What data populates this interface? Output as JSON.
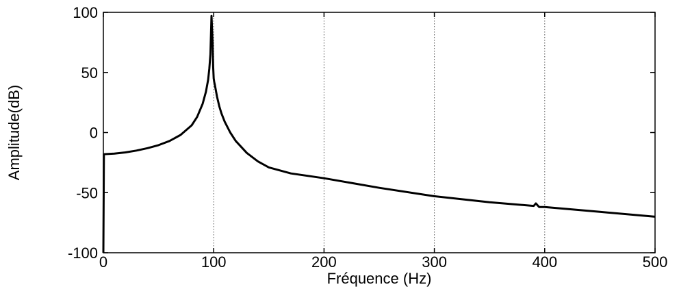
{
  "chart_data": {
    "type": "line",
    "title": "",
    "xlabel": "Fréquence (Hz)",
    "ylabel": "Amplitude(dB)",
    "xlim": [
      0,
      500
    ],
    "ylim": [
      -100,
      100
    ],
    "xticks": [
      0,
      100,
      200,
      300,
      400,
      500
    ],
    "yticks": [
      -100,
      -50,
      0,
      50,
      100
    ],
    "xtick_labels": [
      "0",
      "100",
      "200",
      "300",
      "400",
      "500"
    ],
    "ytick_labels": [
      "-100",
      "-50",
      "0",
      "50",
      "100"
    ],
    "grid": "vertical dotted",
    "line_color": "#000000",
    "series": [
      {
        "x": [
          0,
          0.5,
          10,
          20,
          30,
          40,
          50,
          60,
          70,
          80,
          85,
          90,
          93,
          95,
          96,
          97,
          98,
          99,
          99.5,
          100,
          100.5,
          101,
          102,
          103,
          105,
          107,
          110,
          115,
          120,
          130,
          140,
          150,
          170,
          200,
          250,
          300,
          350,
          390,
          392,
          393,
          395,
          400,
          450,
          500
        ],
        "y": [
          -100,
          -18,
          -17.5,
          -16.5,
          -15,
          -13,
          -10.5,
          -7,
          -2,
          6,
          13,
          24,
          34,
          44,
          53,
          65,
          97,
          75,
          55,
          45,
          42,
          40,
          35,
          30,
          22,
          16,
          9,
          0,
          -7,
          -17,
          -24,
          -29,
          -34,
          -38,
          -46,
          -53,
          -58,
          -61,
          -59,
          -60,
          -62,
          -62,
          -66,
          -70
        ]
      }
    ]
  }
}
